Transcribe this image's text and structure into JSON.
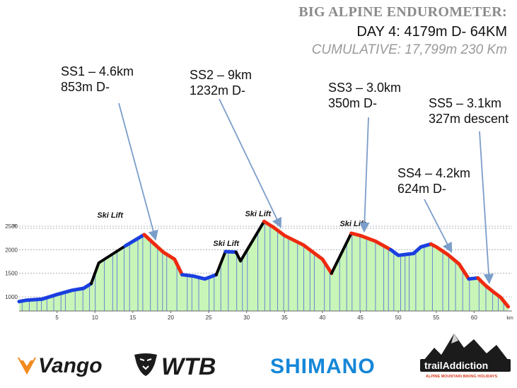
{
  "header": {
    "title": "BIG ALPINE ENDUROMETER:",
    "day": "DAY 4:  4179m D-   64KM",
    "cumulative": "CUMULATIVE: 17,799m  230 Km"
  },
  "stages": [
    {
      "name": "SS1 – 4.6km",
      "desc": "853m D-",
      "km": 18
    },
    {
      "name": "SS2 – 9km",
      "desc": "1232m D-",
      "km": 34.5
    },
    {
      "name": "SS3 – 3.0km",
      "desc": "350m D-",
      "km": 45.5
    },
    {
      "name": "SS4 – 4.2km",
      "desc": "624m D-",
      "km": 57
    },
    {
      "name": "SS5 – 3.1km",
      "desc": "327m descent",
      "km": 62
    }
  ],
  "ski_lift_label": "Ski Lift",
  "logos": {
    "vango": "Vango",
    "wtb": "WTB",
    "shimano": "SHIMANO",
    "trail_addiction": "trailAddiction",
    "trail_addiction_sub": "ALPINE MOUNTAIN BIKING HOLIDAYS"
  },
  "colors": {
    "fill": "#c8f5b8",
    "climb": "#1a3fe0",
    "descent": "#ee2a10",
    "lift": "#000000",
    "grid": "#9aa1aa"
  },
  "chart_data": {
    "type": "area",
    "xlabel": "km",
    "ylabel": "m",
    "xlim": [
      0,
      65
    ],
    "ylim": [
      700,
      2650
    ],
    "x_ticks": [
      5,
      10,
      15,
      20,
      25,
      30,
      35,
      40,
      45,
      50,
      55,
      60
    ],
    "y_ticks": [
      1000,
      1500,
      2000,
      2500
    ],
    "profile": [
      [
        0,
        900
      ],
      [
        1,
        930
      ],
      [
        3,
        950
      ],
      [
        5,
        1050
      ],
      [
        7,
        1140
      ],
      [
        8.5,
        1180
      ],
      [
        9.5,
        1280
      ],
      [
        10.5,
        1720
      ],
      [
        14,
        2080
      ],
      [
        16.5,
        2320
      ],
      [
        17.5,
        2170
      ],
      [
        19,
        1950
      ],
      [
        20.5,
        1800
      ],
      [
        21.5,
        1470
      ],
      [
        23,
        1440
      ],
      [
        24.5,
        1380
      ],
      [
        26,
        1470
      ],
      [
        27.2,
        1960
      ],
      [
        28.6,
        1950
      ],
      [
        29.2,
        1760
      ],
      [
        32.3,
        2600
      ],
      [
        33.5,
        2480
      ],
      [
        35,
        2300
      ],
      [
        37.5,
        2100
      ],
      [
        40,
        1800
      ],
      [
        41.2,
        1500
      ],
      [
        43.8,
        2350
      ],
      [
        45,
        2300
      ],
      [
        47,
        2180
      ],
      [
        49,
        2000
      ],
      [
        50,
        1880
      ],
      [
        51,
        1900
      ],
      [
        52,
        1920
      ],
      [
        53,
        2060
      ],
      [
        54.3,
        2120
      ],
      [
        55,
        2060
      ],
      [
        56.5,
        1900
      ],
      [
        58,
        1700
      ],
      [
        59.3,
        1380
      ],
      [
        60.5,
        1400
      ],
      [
        61.5,
        1240
      ],
      [
        62.5,
        1110
      ],
      [
        63.5,
        990
      ],
      [
        64.5,
        790
      ]
    ],
    "segments": [
      {
        "type": "climb",
        "from": 0,
        "to": 9.5
      },
      {
        "type": "lift",
        "from": 9.5,
        "to": 14
      },
      {
        "type": "climb",
        "from": 14,
        "to": 16.5
      },
      {
        "type": "descent",
        "from": 16.5,
        "to": 21.5
      },
      {
        "type": "climb",
        "from": 21.5,
        "to": 26
      },
      {
        "type": "lift",
        "from": 26,
        "to": 27.2
      },
      {
        "type": "climb",
        "from": 27.2,
        "to": 28.6
      },
      {
        "type": "lift",
        "from": 28.6,
        "to": 29.2
      },
      {
        "type": "lift",
        "from": 29.2,
        "to": 32.3
      },
      {
        "type": "descent",
        "from": 32.3,
        "to": 41.2
      },
      {
        "type": "lift",
        "from": 41.2,
        "to": 43.8
      },
      {
        "type": "descent",
        "from": 43.8,
        "to": 49
      },
      {
        "type": "climb",
        "from": 49,
        "to": 54.3
      },
      {
        "type": "descent",
        "from": 54.3,
        "to": 59.3
      },
      {
        "type": "climb",
        "from": 59.3,
        "to": 60.5
      },
      {
        "type": "descent",
        "from": 60.5,
        "to": 64.5
      }
    ],
    "ski_lifts_km": [
      12,
      27.3,
      31.5,
      44
    ]
  }
}
